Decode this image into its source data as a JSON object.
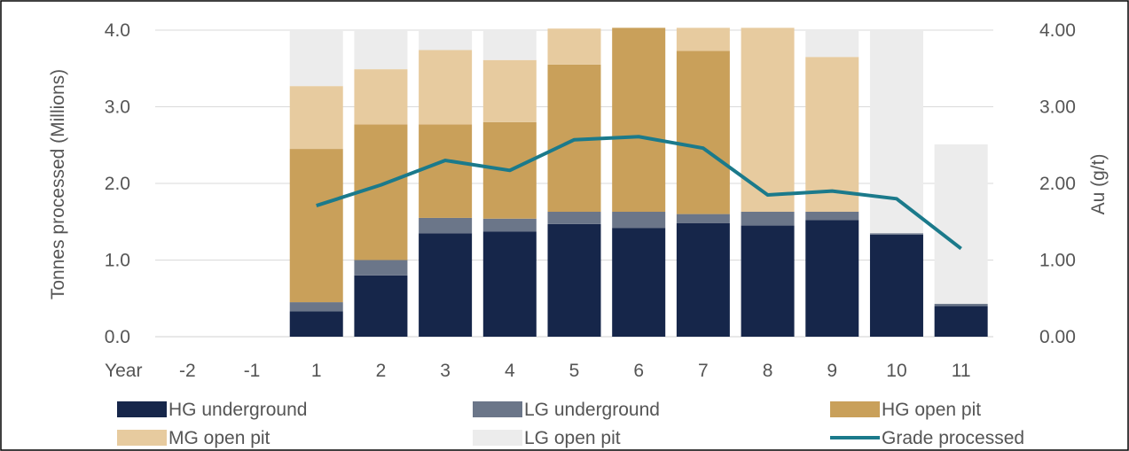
{
  "chart_data": {
    "type": "bar",
    "stacked": true,
    "categories": [
      "-2",
      "-1",
      "1",
      "2",
      "3",
      "4",
      "5",
      "6",
      "7",
      "8",
      "9",
      "10",
      "11"
    ],
    "x_axis_prefix": "Year",
    "ylabel": "Tonnes processed (Millions)",
    "ylabel_right": "Au (g/t)",
    "ylim": [
      0,
      4.0
    ],
    "ylim_right": [
      0,
      4.0
    ],
    "yticks": [
      "0.0",
      "1.0",
      "2.0",
      "3.0",
      "4.0"
    ],
    "yticks_right": [
      "0.00",
      "1.00",
      "2.00",
      "3.00",
      "4.00"
    ],
    "grid": true,
    "legend_position": "bottom",
    "series": [
      {
        "name": "HG underground",
        "color": "#16264a",
        "values": [
          0,
          0,
          0.33,
          0.8,
          1.35,
          1.37,
          1.47,
          1.42,
          1.48,
          1.45,
          1.52,
          1.33,
          0.4
        ]
      },
      {
        "name": "LG underground",
        "color": "#6b7689",
        "values": [
          0,
          0,
          0.12,
          0.2,
          0.2,
          0.17,
          0.16,
          0.21,
          0.12,
          0.18,
          0.11,
          0.02,
          0.03
        ]
      },
      {
        "name": "HG open pit",
        "color": "#c9a05a",
        "values": [
          0,
          0,
          2.0,
          1.77,
          1.22,
          1.26,
          1.92,
          2.4,
          2.13,
          0,
          0,
          0,
          0
        ]
      },
      {
        "name": "MG open pit",
        "color": "#e7cb9f",
        "values": [
          0,
          0,
          0.82,
          0.72,
          0.97,
          0.81,
          0.47,
          0,
          0.3,
          2.4,
          2.02,
          0,
          0
        ]
      },
      {
        "name": "LG open pit",
        "color": "#ececec",
        "values": [
          0,
          0,
          0.73,
          0.51,
          0.26,
          0.39,
          0,
          0,
          0,
          0,
          0.35,
          2.65,
          2.08
        ]
      }
    ],
    "line_series": {
      "name": "Grade processed",
      "color": "#1b7a8b",
      "axis": "right",
      "values": [
        null,
        null,
        1.71,
        1.98,
        2.3,
        2.17,
        2.57,
        2.61,
        2.46,
        1.85,
        1.9,
        1.8,
        1.15
      ]
    }
  }
}
